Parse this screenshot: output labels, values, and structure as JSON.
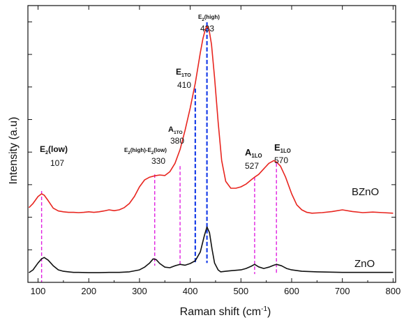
{
  "chart_data": {
    "type": "line",
    "xlabel": "Raman shift (cm",
    "xlabel_sup": "-1",
    "xlabel_end": ")",
    "ylabel": "Intensity (a.u)",
    "xlim": [
      80,
      805
    ],
    "ylim": [
      0,
      1
    ],
    "x_ticks": [
      100,
      200,
      300,
      400,
      500,
      600,
      700,
      800
    ],
    "y_ticklabels": "none",
    "grid": false,
    "series": [
      {
        "name": "BZnO",
        "color": "#e8251f",
        "x": [
          82,
          90,
          100,
          107,
          112,
          120,
          130,
          140,
          150,
          160,
          170,
          180,
          190,
          200,
          210,
          220,
          230,
          240,
          250,
          260,
          270,
          280,
          290,
          300,
          310,
          320,
          330,
          340,
          350,
          360,
          370,
          380,
          390,
          400,
          410,
          420,
          425,
          430,
          433,
          437,
          442,
          448,
          455,
          462,
          470,
          480,
          490,
          500,
          510,
          520,
          527,
          535,
          545,
          555,
          565,
          570,
          578,
          588,
          600,
          610,
          620,
          630,
          640,
          660,
          680,
          700,
          720,
          740,
          760,
          780,
          800
        ],
        "y": [
          0.27,
          0.285,
          0.31,
          0.32,
          0.315,
          0.295,
          0.268,
          0.258,
          0.255,
          0.253,
          0.253,
          0.252,
          0.253,
          0.255,
          0.253,
          0.255,
          0.258,
          0.262,
          0.259,
          0.262,
          0.27,
          0.285,
          0.31,
          0.345,
          0.37,
          0.38,
          0.385,
          0.388,
          0.386,
          0.4,
          0.43,
          0.48,
          0.55,
          0.63,
          0.72,
          0.83,
          0.88,
          0.915,
          0.925,
          0.915,
          0.86,
          0.74,
          0.58,
          0.44,
          0.365,
          0.34,
          0.34,
          0.345,
          0.355,
          0.37,
          0.38,
          0.39,
          0.41,
          0.43,
          0.44,
          0.435,
          0.42,
          0.38,
          0.32,
          0.28,
          0.262,
          0.253,
          0.25,
          0.252,
          0.256,
          0.262,
          0.256,
          0.252,
          0.254,
          0.252,
          0.25
        ]
      },
      {
        "name": "ZnO",
        "color": "#111111",
        "x": [
          82,
          90,
          100,
          107,
          112,
          120,
          130,
          140,
          150,
          160,
          170,
          180,
          200,
          220,
          240,
          260,
          280,
          300,
          310,
          320,
          327,
          333,
          340,
          350,
          360,
          370,
          380,
          390,
          400,
          410,
          420,
          428,
          433,
          438,
          443,
          448,
          455,
          460,
          470,
          480,
          500,
          510,
          520,
          527,
          535,
          545,
          555,
          565,
          570,
          580,
          590,
          600,
          620,
          650,
          700,
          750,
          800
        ],
        "y": [
          0.035,
          0.045,
          0.07,
          0.085,
          0.09,
          0.08,
          0.06,
          0.045,
          0.04,
          0.038,
          0.036,
          0.036,
          0.035,
          0.035,
          0.036,
          0.036,
          0.038,
          0.045,
          0.055,
          0.07,
          0.085,
          0.082,
          0.068,
          0.055,
          0.053,
          0.06,
          0.065,
          0.062,
          0.068,
          0.078,
          0.11,
          0.17,
          0.2,
          0.18,
          0.12,
          0.07,
          0.045,
          0.038,
          0.04,
          0.042,
          0.045,
          0.05,
          0.058,
          0.065,
          0.056,
          0.05,
          0.055,
          0.062,
          0.065,
          0.06,
          0.05,
          0.045,
          0.04,
          0.038,
          0.036,
          0.036,
          0.036
        ]
      }
    ],
    "mode_lines": [
      {
        "x": 107,
        "color": "#e020e0",
        "style": "dashed",
        "y_top": 0.33,
        "y_bottom": 0.0
      },
      {
        "x": 330,
        "color": "#e020e0",
        "style": "dashed",
        "y_top": 0.39,
        "y_bottom": 0.06
      },
      {
        "x": 380,
        "color": "#e020e0",
        "style": "dashed",
        "y_top": 0.42,
        "y_bottom": 0.06
      },
      {
        "x": 410,
        "color": "#1a3fe8",
        "style": "dashed",
        "y_top": 0.7,
        "y_bottom": 0.07
      },
      {
        "x": 433,
        "color": "#1a3fe8",
        "style": "dashed",
        "y_top": 0.94,
        "y_bottom": 0.07
      },
      {
        "x": 527,
        "color": "#e020e0",
        "style": "dashed",
        "y_top": 0.38,
        "y_bottom": 0.03
      },
      {
        "x": 570,
        "color": "#e020e0",
        "style": "dashed",
        "y_top": 0.43,
        "y_bottom": 0.03
      }
    ],
    "annotations": [
      {
        "id": "e2low",
        "main": "E",
        "sub": "2",
        "rest": "(low)",
        "value": "107",
        "x": 107
      },
      {
        "id": "e2diff",
        "main": "E",
        "sub": "2",
        "rest": "(high)-E",
        "sub2": "2",
        "rest2": "(low)",
        "value": "330",
        "x": 330
      },
      {
        "id": "a1to",
        "main": "A",
        "sub": "1TO",
        "value": "380",
        "x": 380
      },
      {
        "id": "e1to",
        "main": "E",
        "sub": "1TO",
        "value": "410",
        "x": 410
      },
      {
        "id": "e2high",
        "main": "E",
        "sub": "2",
        "rest": "(high)",
        "value": "433",
        "x": 433
      },
      {
        "id": "a1lo",
        "main": "A",
        "sub": "1LO",
        "value": "527",
        "x": 527
      },
      {
        "id": "e1lo",
        "main": "E",
        "sub": "1LO",
        "value": "570",
        "x": 570
      }
    ]
  }
}
